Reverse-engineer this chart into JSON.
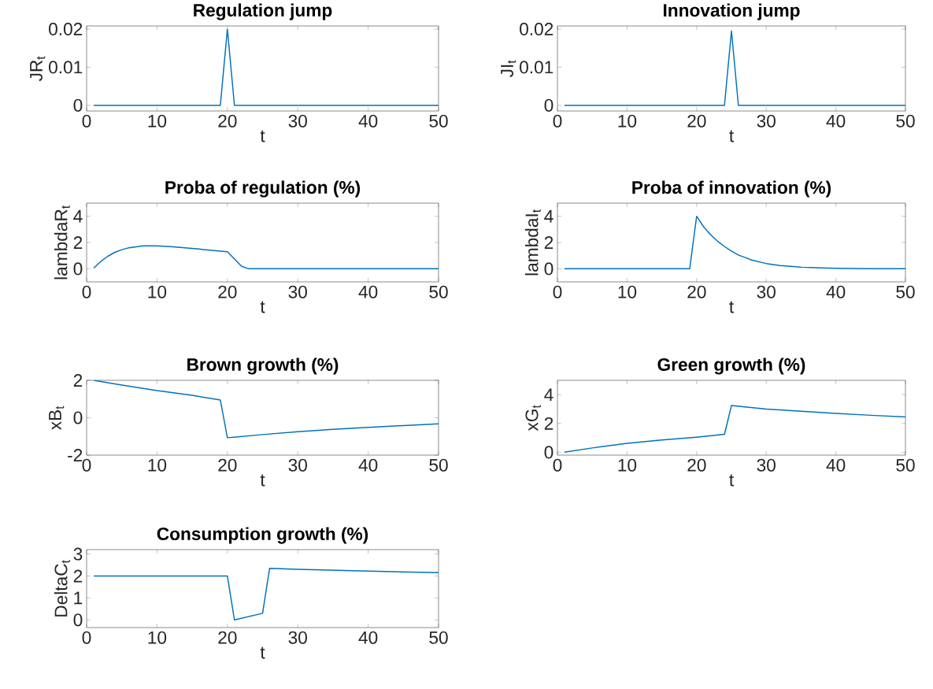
{
  "chart_data": [
    {
      "type": "line",
      "title": "Regulation jump",
      "xlabel": "t",
      "ylabel": "JR$_{t}$",
      "color": "#0072bd",
      "xlim": [
        0,
        50
      ],
      "xticks": [
        0,
        10,
        20,
        30,
        40,
        50
      ],
      "ylim": [
        -0.0015,
        0.0208
      ],
      "yticks": [
        0,
        0.01,
        0.02
      ],
      "x": [
        1,
        19,
        20,
        21,
        50
      ],
      "values": [
        0,
        0,
        0.02,
        0,
        0
      ]
    },
    {
      "type": "line",
      "title": "Innovation jump",
      "xlabel": "t",
      "ylabel": "JI$_{t}$",
      "color": "#0072bd",
      "xlim": [
        0,
        50
      ],
      "xticks": [
        0,
        10,
        20,
        30,
        40,
        50
      ],
      "ylim": [
        -0.0015,
        0.0208
      ],
      "yticks": [
        0,
        0.01,
        0.02
      ],
      "x": [
        1,
        24,
        25,
        26,
        50
      ],
      "values": [
        0,
        0,
        0.0195,
        0,
        0
      ]
    },
    {
      "type": "line",
      "title": "Proba of regulation (%)",
      "xlabel": "t",
      "ylabel": "lambdaR$_{t}$",
      "color": "#0072bd",
      "xlim": [
        0,
        50
      ],
      "xticks": [
        0,
        10,
        20,
        30,
        40,
        50
      ],
      "ylim": [
        -1,
        5
      ],
      "yticks": [
        0,
        2,
        4
      ],
      "x": [
        1,
        2,
        3,
        4,
        5,
        6,
        8,
        10,
        12,
        14,
        16,
        18,
        20,
        21,
        22,
        23,
        50
      ],
      "values": [
        0.05,
        0.55,
        0.95,
        1.25,
        1.45,
        1.6,
        1.75,
        1.75,
        1.68,
        1.6,
        1.5,
        1.4,
        1.3,
        0.75,
        0.2,
        0,
        0
      ]
    },
    {
      "type": "line",
      "title": "Proba of innovation (%)",
      "xlabel": "t",
      "ylabel": "lambdaI$_{t}$",
      "color": "#0072bd",
      "xlim": [
        0,
        50
      ],
      "xticks": [
        0,
        10,
        20,
        30,
        40,
        50
      ],
      "ylim": [
        -1,
        5
      ],
      "yticks": [
        0,
        2,
        4
      ],
      "x": [
        1,
        19,
        20,
        21,
        22,
        23,
        24,
        25,
        26,
        27,
        28,
        30,
        32,
        35,
        38,
        40,
        45,
        50
      ],
      "values": [
        0,
        0,
        4,
        3.2,
        2.6,
        2.1,
        1.7,
        1.35,
        1.05,
        0.85,
        0.65,
        0.4,
        0.25,
        0.12,
        0.06,
        0.03,
        0.01,
        0
      ]
    },
    {
      "type": "line",
      "title": "Brown growth (%)",
      "xlabel": "t",
      "ylabel": "xB$_{t}$",
      "color": "#0072bd",
      "xlim": [
        0,
        50
      ],
      "xticks": [
        0,
        10,
        20,
        30,
        40,
        50
      ],
      "ylim": [
        -2,
        2
      ],
      "yticks": [
        -2,
        0,
        2
      ],
      "x": [
        1,
        5,
        10,
        15,
        19,
        20,
        25,
        30,
        35,
        40,
        45,
        50
      ],
      "values": [
        2,
        1.75,
        1.45,
        1.2,
        0.95,
        -1.07,
        -0.9,
        -0.75,
        -0.62,
        -0.52,
        -0.42,
        -0.33
      ]
    },
    {
      "type": "line",
      "title": "Green growth (%)",
      "xlabel": "t",
      "ylabel": "xG$_{t}$",
      "color": "#0072bd",
      "xlim": [
        0,
        50
      ],
      "xticks": [
        0,
        10,
        20,
        30,
        40,
        50
      ],
      "ylim": [
        -0.2,
        5
      ],
      "yticks": [
        0,
        2,
        4
      ],
      "x": [
        1,
        5,
        10,
        15,
        20,
        24,
        25,
        30,
        35,
        40,
        45,
        50
      ],
      "values": [
        0,
        0.3,
        0.62,
        0.85,
        1.05,
        1.25,
        3.25,
        3.0,
        2.85,
        2.7,
        2.57,
        2.45
      ]
    },
    {
      "type": "line",
      "title": "Consumption growth (%)",
      "xlabel": "t",
      "ylabel": "DeltaC$_{t}$",
      "color": "#0072bd",
      "xlim": [
        0,
        50
      ],
      "xticks": [
        0,
        10,
        20,
        30,
        40,
        50
      ],
      "ylim": [
        -0.35,
        3.2
      ],
      "yticks": [
        0,
        1,
        2,
        3
      ],
      "x": [
        1,
        20,
        21,
        25,
        26,
        30,
        40,
        50
      ],
      "values": [
        2,
        2,
        0,
        0.3,
        2.35,
        2.3,
        2.22,
        2.15
      ]
    }
  ]
}
